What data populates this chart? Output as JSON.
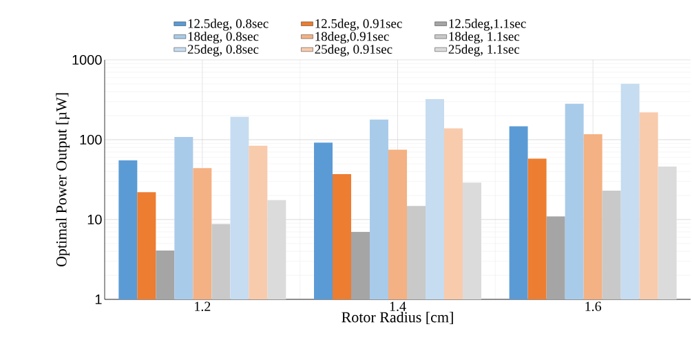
{
  "chart_data": {
    "type": "bar",
    "xlabel": "Rotor Radius [cm]",
    "ylabel": "Optimal Power Output [µW]",
    "categories": [
      "1.2",
      "1.4",
      "1.6"
    ],
    "series": [
      {
        "name": "12.5deg, 0.8sec",
        "color": "#5b9bd5",
        "values": [
          55,
          92,
          147
        ]
      },
      {
        "name": "12.5deg, 0.91sec",
        "color": "#ed7d31",
        "values": [
          22,
          37,
          58
        ]
      },
      {
        "name": "12.5deg,1.1sec",
        "color": "#a5a5a5",
        "values": [
          4.1,
          7,
          11
        ]
      },
      {
        "name": "18deg, 0.8sec",
        "color": "#a9cbea",
        "values": [
          108,
          179,
          283
        ]
      },
      {
        "name": "18deg,0.91sec",
        "color": "#f4b183",
        "values": [
          44,
          75,
          117
        ]
      },
      {
        "name": "18deg, 1.1sec",
        "color": "#c9c9c9",
        "values": [
          8.8,
          14.8,
          23
        ]
      },
      {
        "name": "25deg, 0.8sec",
        "color": "#c6dcf0",
        "values": [
          193,
          322,
          504
        ]
      },
      {
        "name": "25deg, 0.91sec",
        "color": "#f8cbad",
        "values": [
          84,
          139,
          220
        ]
      },
      {
        "name": "25deg, 1.1sec",
        "color": "#dbdbdb",
        "values": [
          17.5,
          29,
          46
        ]
      }
    ],
    "log": "y",
    "ylim": [
      1,
      1000
    ],
    "yticks": [
      1,
      10,
      100,
      1000
    ],
    "grid": true,
    "legend": "top"
  }
}
